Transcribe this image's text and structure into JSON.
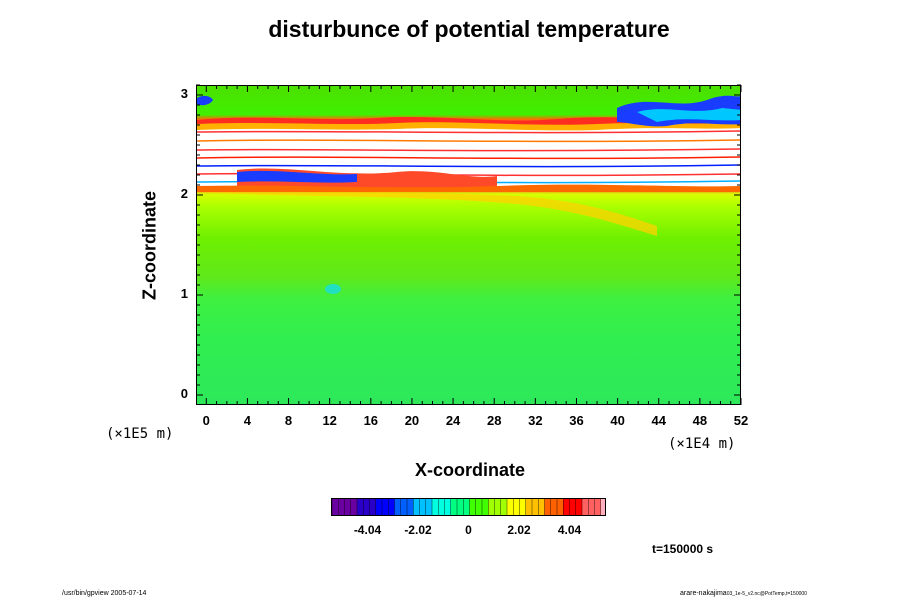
{
  "chart_data": {
    "type": "heatmap",
    "title": "disturbunce of potential temperature",
    "xlabel": "X-coordinate",
    "ylabel": "Z-coordinate",
    "x_ticks": [
      "0",
      "4",
      "8",
      "12",
      "16",
      "20",
      "24",
      "28",
      "32",
      "36",
      "40",
      "44",
      "48",
      "52"
    ],
    "y_ticks": [
      "0",
      "1",
      "2",
      "3"
    ],
    "x_scale": "(×1E4 m)",
    "y_scale": "(×1E5 m)",
    "xlim": [
      -1,
      52
    ],
    "ylim": [
      -0.1,
      3.1
    ],
    "colorbar": {
      "ticks": [
        "-4.04",
        "-2.02",
        "0",
        "2.02",
        "4.04"
      ],
      "range": [
        -5.5,
        5.5
      ]
    },
    "field_summary": [
      {
        "z_range": [
          0,
          1.1
        ],
        "value": -0.3
      },
      {
        "z_range": [
          1.1,
          2.0
        ],
        "value": 0.8
      },
      {
        "z_range": [
          2.0,
          2.8
        ],
        "value": "undefined (white)"
      },
      {
        "z_range": [
          2.7,
          2.8
        ],
        "value": 4.5
      },
      {
        "z_range": [
          2.8,
          3.1
        ],
        "value": 0.3
      }
    ],
    "annotation": "t=150000 s"
  },
  "footer": {
    "left": "/usr/bin/gpview 2005-07-14",
    "right_main": "arare-nakajima",
    "right_small": "03_1e-5_v2.nc@PotTemp,t=150000"
  }
}
